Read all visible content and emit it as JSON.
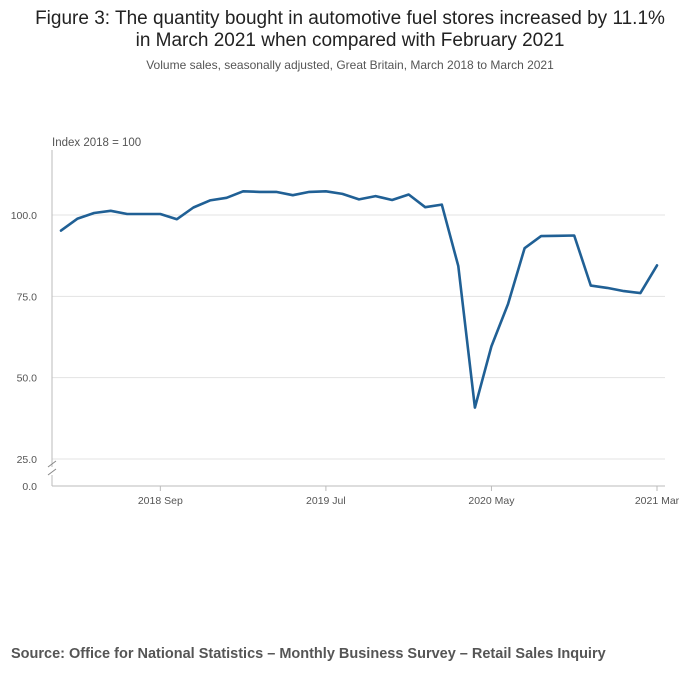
{
  "chart_data": {
    "type": "line",
    "title_lines": [
      "Figure 3: The quantity bought in automotive fuel stores increased by 11.1%",
      "in March 2021 when compared with February 2021"
    ],
    "subtitle": "Volume sales, seasonally adjusted, Great Britain, March 2018 to March 2021",
    "y_title": "Index 2018 = 100",
    "y_ticks": [
      {
        "value": 25,
        "label": "25.0"
      },
      {
        "value": 50,
        "label": "50.0"
      },
      {
        "value": 75,
        "label": "75.0"
      },
      {
        "value": 100,
        "label": "100.0"
      }
    ],
    "y_zero_label": "0.0",
    "y_axis_break": true,
    "ylim": [
      25,
      120
    ],
    "x_ticks": [
      {
        "index": 6,
        "label": "2018 Sep"
      },
      {
        "index": 16,
        "label": "2019 Jul"
      },
      {
        "index": 26,
        "label": "2020 May"
      },
      {
        "index": 36,
        "label": "2021 Mar"
      }
    ],
    "series": [
      {
        "name": "Automotive fuel",
        "color": "#206095",
        "x": [
          "2018 Mar",
          "2018 Apr",
          "2018 May",
          "2018 Jun",
          "2018 Jul",
          "2018 Aug",
          "2018 Sep",
          "2018 Oct",
          "2018 Nov",
          "2018 Dec",
          "2019 Jan",
          "2019 Feb",
          "2019 Mar",
          "2019 Apr",
          "2019 May",
          "2019 Jun",
          "2019 Jul",
          "2019 Aug",
          "2019 Sep",
          "2019 Oct",
          "2019 Nov",
          "2019 Dec",
          "2020 Jan",
          "2020 Feb",
          "2020 Mar",
          "2020 Apr",
          "2020 May",
          "2020 Jun",
          "2020 Jul",
          "2020 Aug",
          "2020 Sep",
          "2020 Oct",
          "2020 Nov",
          "2020 Dec",
          "2021 Jan",
          "2021 Feb",
          "2021 Mar"
        ],
        "values": [
          95.2,
          98.9,
          100.6,
          101.3,
          100.3,
          100.3,
          100.3,
          98.7,
          102.3,
          104.5,
          105.3,
          107.3,
          107.1,
          107.1,
          106.1,
          107.1,
          107.3,
          106.5,
          104.8,
          105.8,
          104.6,
          106.3,
          102.4,
          103.2,
          84.3,
          40.8,
          59.6,
          72.6,
          89.8,
          93.5,
          93.6,
          93.7,
          78.3,
          77.6,
          76.6,
          76.0,
          84.5
        ]
      }
    ]
  },
  "source": "Source: Office for National Statistics – Monthly Business Survey – Retail Sales Inquiry"
}
